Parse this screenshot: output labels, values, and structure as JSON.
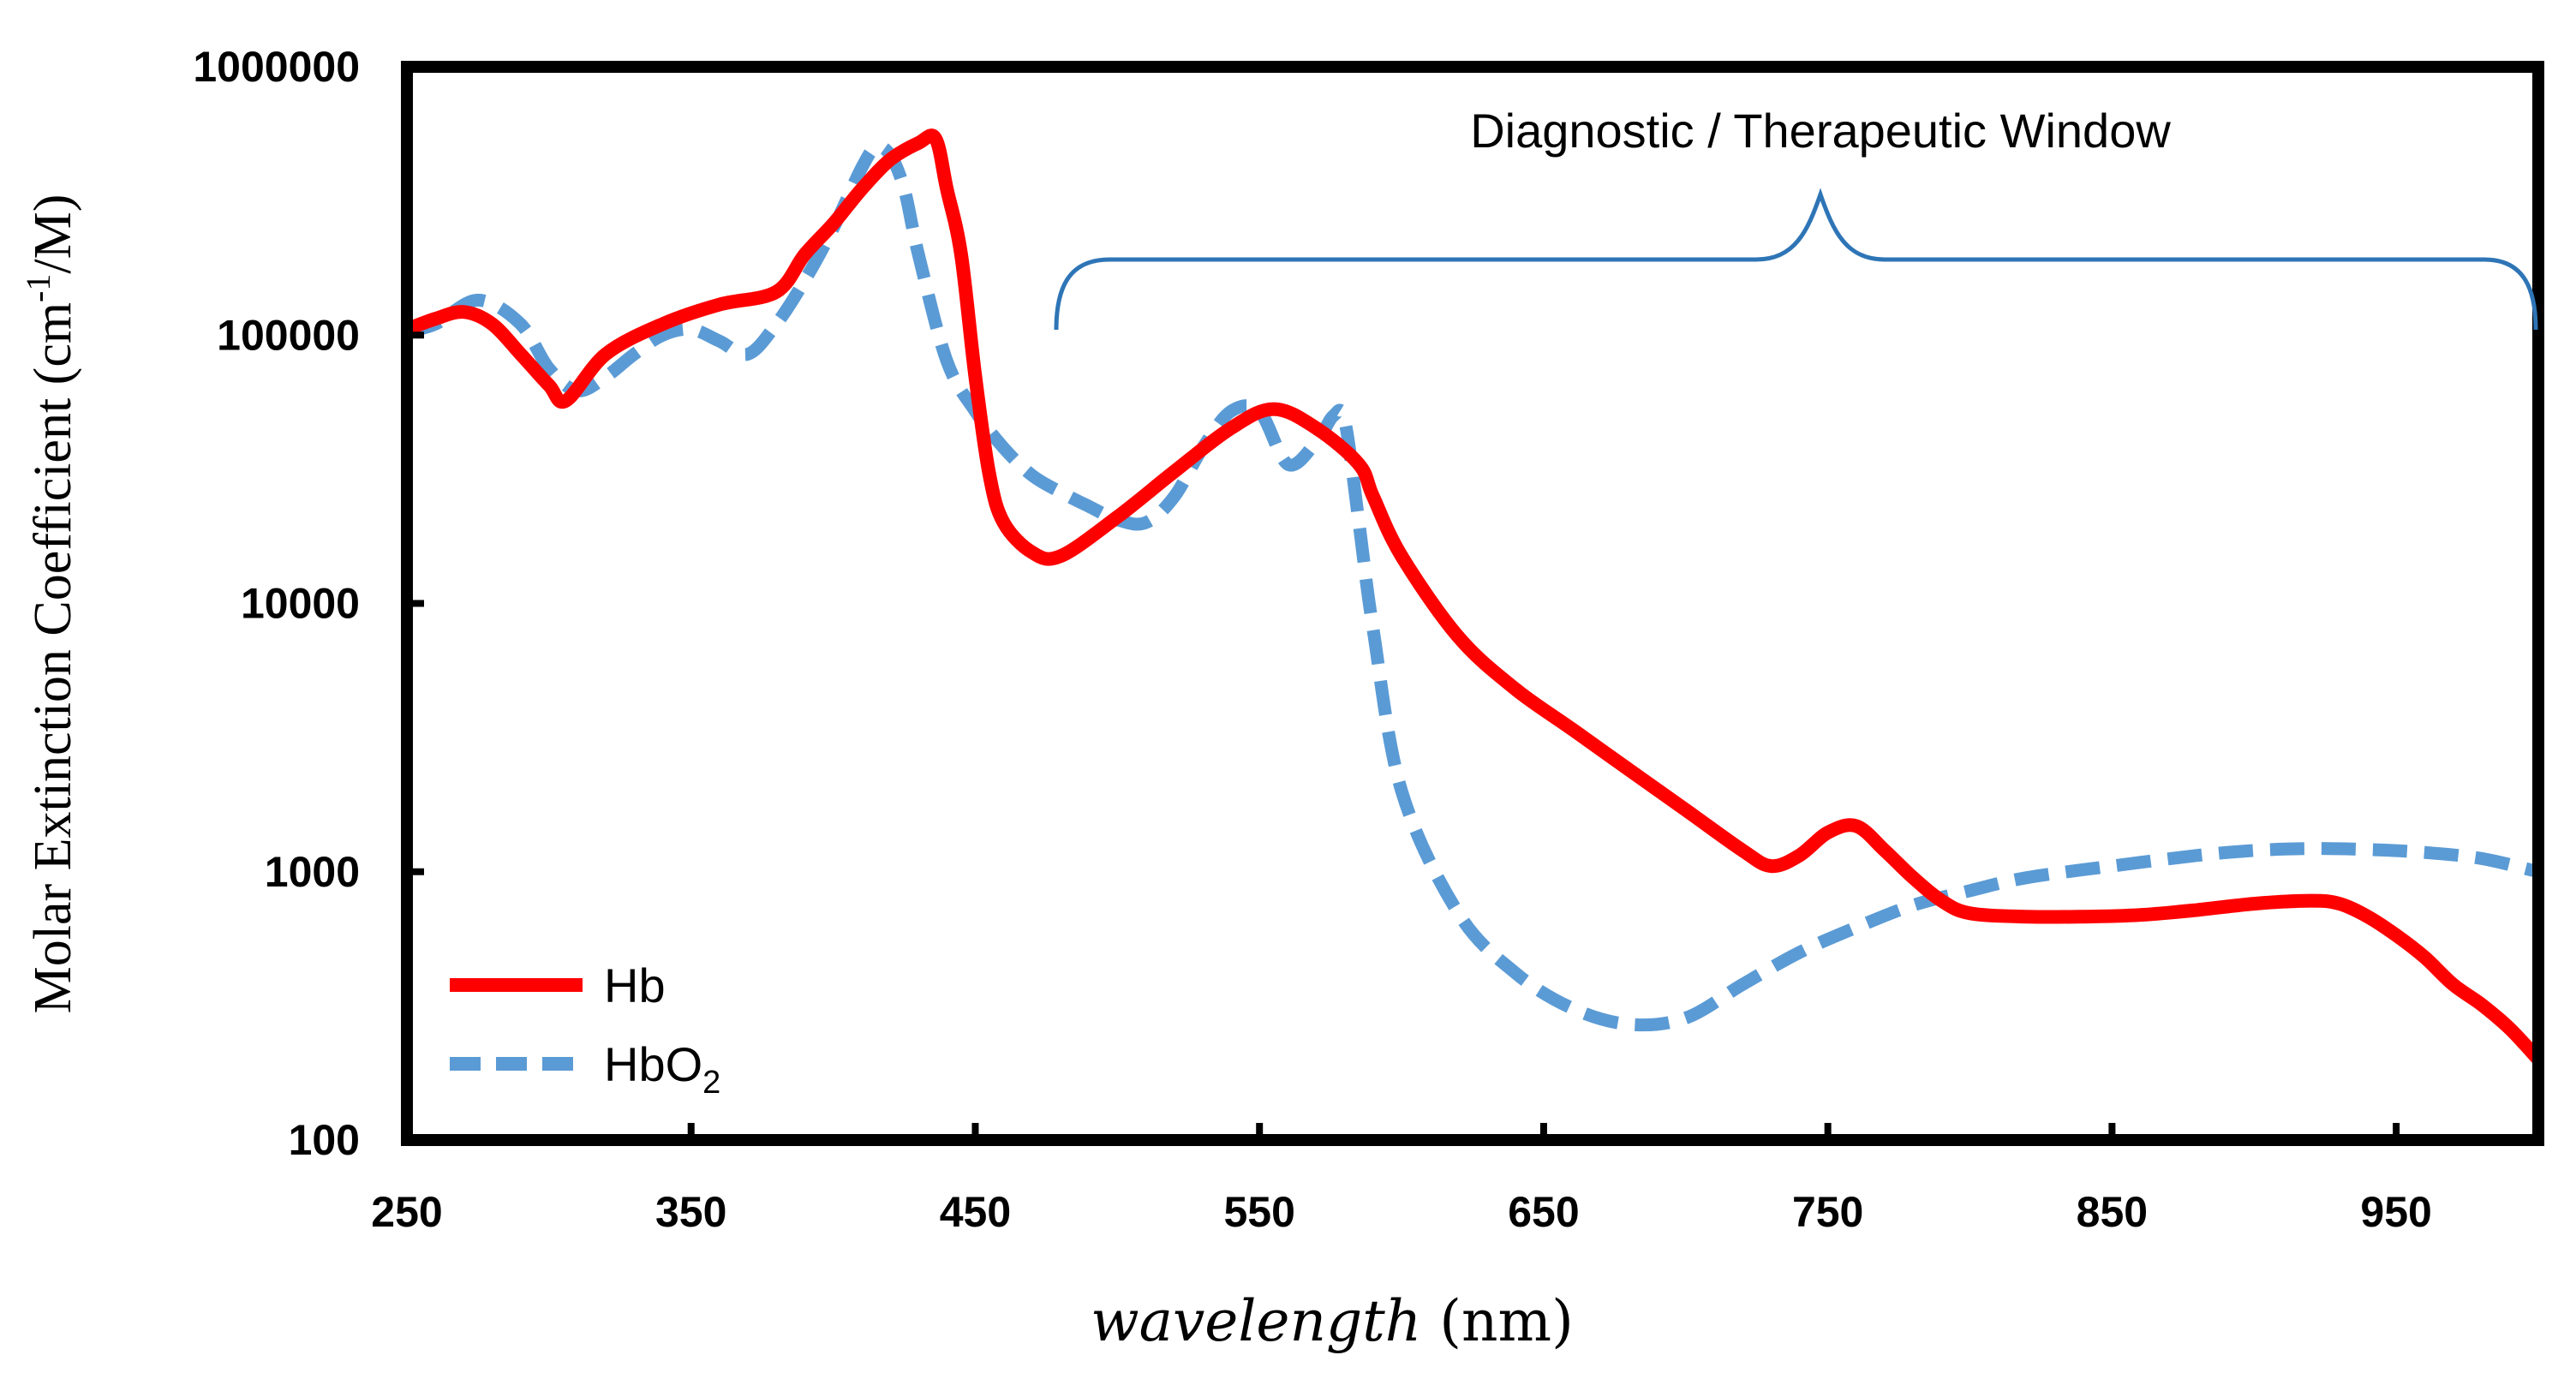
{
  "chart_data": {
    "type": "line",
    "title": "",
    "xlabel": "wavelength (nm)",
    "ylabel": "Molar Extinction Coefficient (cm-1/M)",
    "ylabel_parts": {
      "prefix": "Molar Extinction Coefficient (cm",
      "sup": "-1",
      "suffix": "/M)"
    },
    "xlabel_parts": {
      "var": "wavelength",
      "unit": "(nm)"
    },
    "xlim": [
      250,
      1000
    ],
    "ylim": [
      100,
      1000000
    ],
    "yscale": "log",
    "x_ticks": [
      250,
      350,
      450,
      550,
      650,
      750,
      850,
      950
    ],
    "x_tick_labels": [
      "250",
      "350",
      "450",
      "550",
      "650",
      "750",
      "850",
      "950"
    ],
    "y_ticks": [
      100,
      1000,
      10000,
      100000,
      1000000
    ],
    "y_tick_labels": [
      "100",
      "1000",
      "10000",
      "100000",
      "1000000"
    ],
    "grid": false,
    "legend_position": "bottom-left",
    "annotation": {
      "text": "Diagnostic / Therapeutic Window",
      "x_range": [
        480,
        1000
      ]
    },
    "series": [
      {
        "name": "Hb",
        "legend_label": "Hb",
        "color": "#ff0000",
        "style": "solid",
        "x": [
          250,
          260,
          270,
          280,
          290,
          300,
          306,
          320,
          340,
          360,
          380,
          390,
          400,
          410,
          420,
          430,
          436,
          440,
          445,
          450,
          455,
          460,
          470,
          480,
          500,
          520,
          540,
          555,
          570,
          585,
          590,
          600,
          620,
          640,
          660,
          680,
          700,
          720,
          730,
          740,
          750,
          760,
          770,
          780,
          790,
          800,
          820,
          840,
          860,
          880,
          900,
          920,
          930,
          940,
          950,
          960,
          970,
          980,
          990,
          1000
        ],
        "y": [
          105000,
          115000,
          122000,
          110000,
          85000,
          65000,
          57000,
          85000,
          110000,
          130000,
          145000,
          200000,
          260000,
          350000,
          450000,
          520000,
          540000,
          350000,
          200000,
          70000,
          30000,
          20000,
          15500,
          15000,
          21000,
          31000,
          45000,
          53000,
          45000,
          33000,
          25000,
          15000,
          7500,
          4800,
          3400,
          2400,
          1700,
          1200,
          1050,
          1150,
          1400,
          1480,
          1200,
          950,
          780,
          700,
          680,
          680,
          690,
          720,
          760,
          780,
          760,
          680,
          580,
          480,
          380,
          320,
          260,
          200
        ]
      },
      {
        "name": "HbO2",
        "legend_label": "HbO",
        "legend_sub": "2",
        "color": "#5b9bd5",
        "style": "dashed",
        "x": [
          250,
          260,
          275,
          290,
          300,
          310,
          320,
          330,
          340,
          350,
          360,
          370,
          380,
          390,
          400,
          410,
          415,
          420,
          425,
          430,
          440,
          450,
          460,
          470,
          480,
          490,
          500,
          510,
          520,
          530,
          540,
          550,
          560,
          570,
          576,
          580,
          585,
          590,
          600,
          620,
          640,
          660,
          680,
          700,
          720,
          740,
          760,
          780,
          800,
          820,
          850,
          880,
          900,
          920,
          940,
          960,
          980,
          1000
        ],
        "y": [
          103000,
          110000,
          135000,
          110000,
          75000,
          62000,
          70000,
          85000,
          100000,
          105000,
          95000,
          85000,
          110000,
          160000,
          250000,
          420000,
          500000,
          470000,
          350000,
          200000,
          80000,
          52000,
          38000,
          30000,
          26000,
          23000,
          20500,
          20000,
          25000,
          38000,
          52000,
          52000,
          33000,
          40000,
          50000,
          48000,
          20000,
          8000,
          2000,
          700,
          420,
          310,
          270,
          285,
          380,
          500,
          620,
          750,
          850,
          950,
          1050,
          1150,
          1200,
          1220,
          1210,
          1180,
          1120,
          1000
        ]
      }
    ]
  }
}
